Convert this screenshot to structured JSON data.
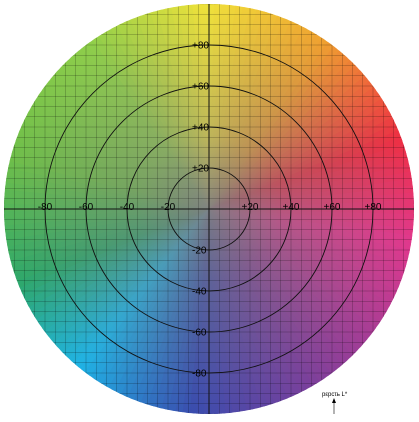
{
  "chart_data": {
    "type": "scatter",
    "title": "",
    "xlabel": "",
    "ylabel": "",
    "xlim": [
      -100,
      100
    ],
    "ylim": [
      -100,
      100
    ],
    "x_ticks": [
      {
        "value": -80,
        "label": "-80"
      },
      {
        "value": -60,
        "label": "-60"
      },
      {
        "value": -40,
        "label": "-40"
      },
      {
        "value": -20,
        "label": "-20"
      },
      {
        "value": 20,
        "label": "+20"
      },
      {
        "value": 40,
        "label": "+40"
      },
      {
        "value": 60,
        "label": "+60"
      },
      {
        "value": 80,
        "label": "+80"
      }
    ],
    "y_ticks": [
      {
        "value": 80,
        "label": "+80"
      },
      {
        "value": 60,
        "label": "+60"
      },
      {
        "value": 40,
        "label": "+40"
      },
      {
        "value": 20,
        "label": "+20"
      },
      {
        "value": -20,
        "label": "-20"
      },
      {
        "value": -40,
        "label": "-40"
      },
      {
        "value": -60,
        "label": "-60"
      },
      {
        "value": -80,
        "label": "-80"
      }
    ],
    "rings": [
      20,
      40,
      60,
      80
    ],
    "grid": true,
    "grid_step": 5,
    "annotation": "pεpcτь L*",
    "color_stops": {
      "top": "#f1e33a",
      "top_right": "#f0a030",
      "right_top": "#ee2f43",
      "right": "#e1388d",
      "bottom_right": "#7c3f9b",
      "bottom": "#3a4cae",
      "bottom_left": "#1eb3e6",
      "left_bottom": "#2ea86a",
      "left": "#6fbf4a",
      "top_left": "#8fcf4a",
      "center": "#7f7f82"
    }
  }
}
